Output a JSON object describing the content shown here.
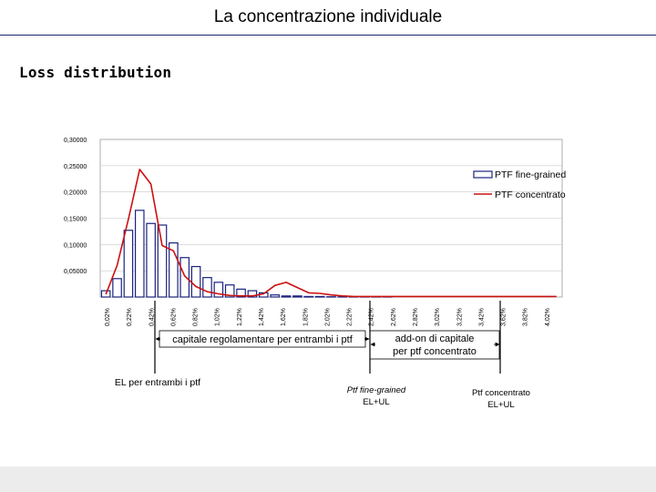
{
  "slide": {
    "title": "La concentrazione individuale",
    "subtitle": "Loss distribution"
  },
  "chart_data": {
    "type": "bar",
    "ylim": [
      0,
      0.3
    ],
    "y_ticks": [
      "0,00000",
      "0,05000",
      "0,10000",
      "0,15000",
      "0,20000",
      "0,25000",
      "0,30000"
    ],
    "x_tick_labels": [
      "0,02%",
      "0,22%",
      "0,42%",
      "0,62%",
      "0,82%",
      "1,02%",
      "1,22%",
      "1,42%",
      "1,62%",
      "1,82%",
      "2,02%",
      "2,22%",
      "2,42%",
      "2,62%",
      "2,82%",
      "3,02%",
      "3,22%",
      "3,42%",
      "3,62%",
      "3,82%",
      "4,02%"
    ],
    "grid": true,
    "legend_position": "top-right",
    "series": [
      {
        "name": "PTF fine-grained",
        "kind": "bar",
        "color": "#1a237e",
        "values": [
          0.012,
          0.035,
          0.127,
          0.165,
          0.14,
          0.137,
          0.103,
          0.075,
          0.058,
          0.037,
          0.028,
          0.023,
          0.015,
          0.012,
          0.008,
          0.004,
          0.002,
          0.002,
          0.001,
          0.001,
          0.0005,
          0.0003,
          0.0002,
          0.0001,
          0.0001,
          0.0001,
          0,
          0,
          0,
          0,
          0,
          0,
          0,
          0,
          0,
          0,
          0,
          0,
          0,
          0,
          0
        ]
      },
      {
        "name": "PTF concentrato",
        "kind": "line",
        "color": "#cc1111",
        "values": [
          0.005,
          0.06,
          0.148,
          0.243,
          0.215,
          0.098,
          0.088,
          0.04,
          0.02,
          0.01,
          0.006,
          0.003,
          0.002,
          0.002,
          0.006,
          0.022,
          0.028,
          0.018,
          0.008,
          0.007,
          0.004,
          0.002,
          0.001,
          0.001,
          0.001,
          0.001,
          0.001,
          0.001,
          0.001,
          0.001,
          0.001,
          0.001,
          0.001,
          0.001,
          0.001,
          0.001,
          0.001,
          0.001,
          0.001,
          0.001,
          0.001
        ]
      }
    ],
    "annotations": {
      "capitale_regolamentare": "capitale regolamentare per entrambi i ptf",
      "addon_line1": "add-on di capitale",
      "addon_line2": "per ptf concentrato",
      "el_label": "EL per entrambi i ptf",
      "fine_grained_line1": "Ptf fine-grained",
      "fine_grained_line2": "EL+UL",
      "concentrato_line1": "Ptf concentrato",
      "concentrato_line2": "EL+UL"
    }
  }
}
